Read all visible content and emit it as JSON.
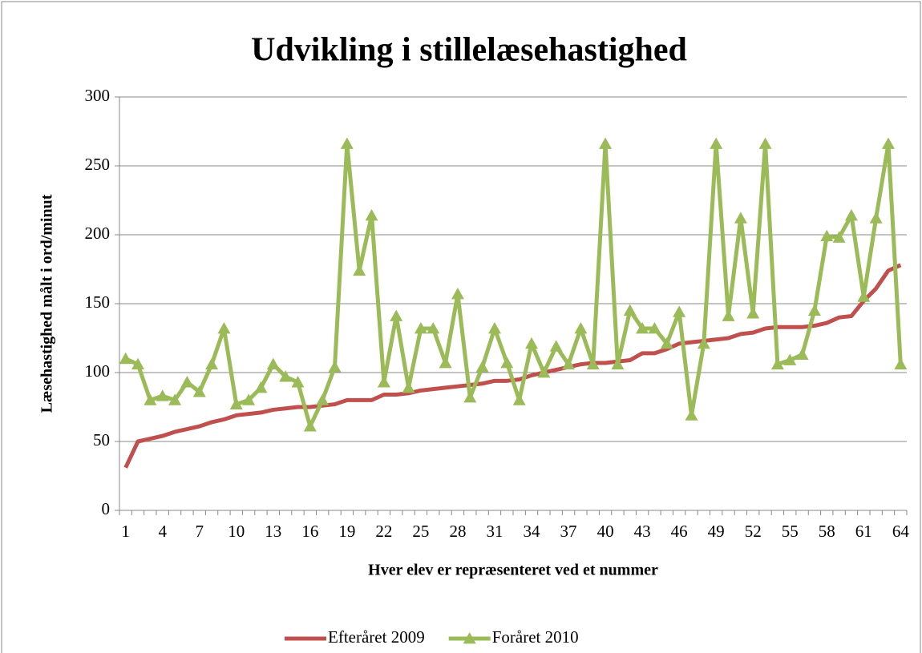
{
  "chart_data": {
    "type": "line",
    "title": "Udvikling i stillelæsehastighed",
    "ylabel": "Læsehastighed målt i ord/minut",
    "xlabel": "Hver elev er repræsenteret ved et nummer",
    "categories": [
      "1",
      null,
      null,
      "4",
      null,
      null,
      "7",
      null,
      null,
      "10",
      null,
      null,
      "13",
      null,
      null,
      "16",
      null,
      null,
      "19",
      null,
      null,
      "22",
      null,
      null,
      "25",
      null,
      null,
      "28",
      null,
      null,
      "31",
      null,
      null,
      "34",
      null,
      null,
      "37",
      null,
      null,
      "40",
      null,
      null,
      "43",
      null,
      null,
      "46",
      null,
      null,
      "49",
      null,
      null,
      "52",
      null,
      null,
      "55",
      null,
      null,
      "58",
      null,
      null,
      "61",
      null,
      null,
      "64"
    ],
    "series": [
      {
        "name": "Efteråret 2009",
        "color": "#c0504d",
        "marker": "none",
        "values": [
          31,
          50,
          52,
          54,
          57,
          59,
          61,
          64,
          66,
          69,
          70,
          71,
          73,
          74,
          75,
          75,
          76,
          77,
          80,
          80,
          80,
          84,
          84,
          85,
          87,
          88,
          89,
          90,
          91,
          92,
          94,
          94,
          95,
          98,
          100,
          102,
          104,
          106,
          107,
          107,
          108,
          109,
          114,
          114,
          117,
          121,
          122,
          123,
          124,
          125,
          128,
          129,
          132,
          133,
          133,
          133,
          134,
          136,
          140,
          141,
          152,
          161,
          174,
          178
        ]
      },
      {
        "name": "Foråret 2010",
        "color": "#9bbb59",
        "marker": "triangle",
        "values": [
          110,
          106,
          80,
          83,
          80,
          93,
          86,
          106,
          132,
          77,
          80,
          89,
          106,
          97,
          93,
          61,
          80,
          104,
          266,
          174,
          214,
          93,
          141,
          89,
          132,
          132,
          107,
          157,
          82,
          104,
          132,
          107,
          80,
          121,
          100,
          119,
          106,
          132,
          106,
          266,
          106,
          145,
          132,
          132,
          121,
          144,
          69,
          121,
          266,
          141,
          212,
          143,
          266,
          106,
          109,
          113,
          145,
          199,
          198,
          214,
          155,
          212,
          266,
          106
        ]
      }
    ],
    "ylim": [
      0,
      300
    ],
    "yticks": [
      0,
      50,
      100,
      150,
      200,
      250,
      300
    ],
    "grid": true,
    "legend": "bottom"
  }
}
